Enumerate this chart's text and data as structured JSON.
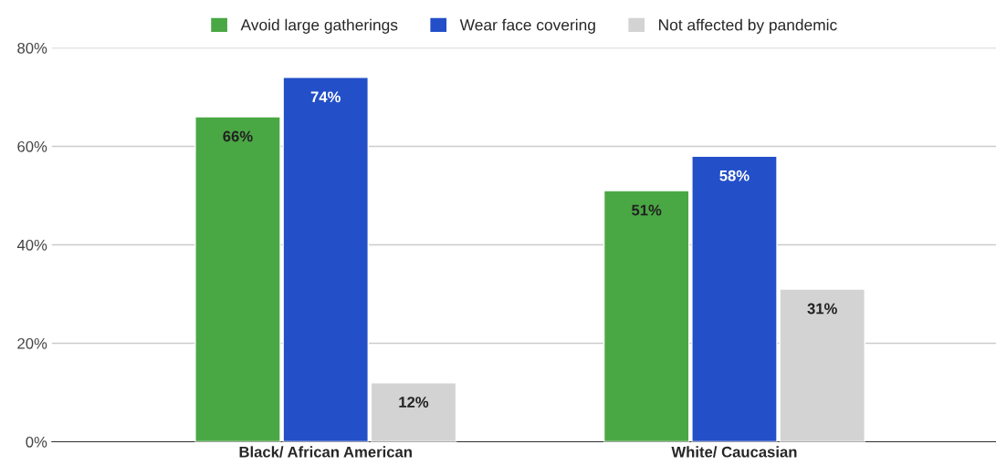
{
  "chart_data": {
    "type": "bar",
    "categories": [
      "Black/ African American",
      "White/ Caucasian"
    ],
    "series": [
      {
        "name": "Avoid large gatherings",
        "color": "#4aa844",
        "values": [
          66,
          51
        ],
        "value_labels": [
          "66%",
          "51%"
        ]
      },
      {
        "name": "Wear face covering",
        "color": "#234fc8",
        "values": [
          74,
          58
        ],
        "value_labels": [
          "74%",
          "58%"
        ]
      },
      {
        "name": "Not affected by pandemic",
        "color": "#d3d3d3",
        "values": [
          12,
          31
        ],
        "value_labels": [
          "12%",
          "31%"
        ]
      }
    ],
    "ylim": [
      0,
      80
    ],
    "yticks": [
      {
        "value": 0,
        "label": "0%"
      },
      {
        "value": 20,
        "label": "20%"
      },
      {
        "value": 40,
        "label": "40%"
      },
      {
        "value": 60,
        "label": "60%"
      },
      {
        "value": 80,
        "label": "80%"
      }
    ],
    "grid": "y",
    "legend": "top"
  }
}
